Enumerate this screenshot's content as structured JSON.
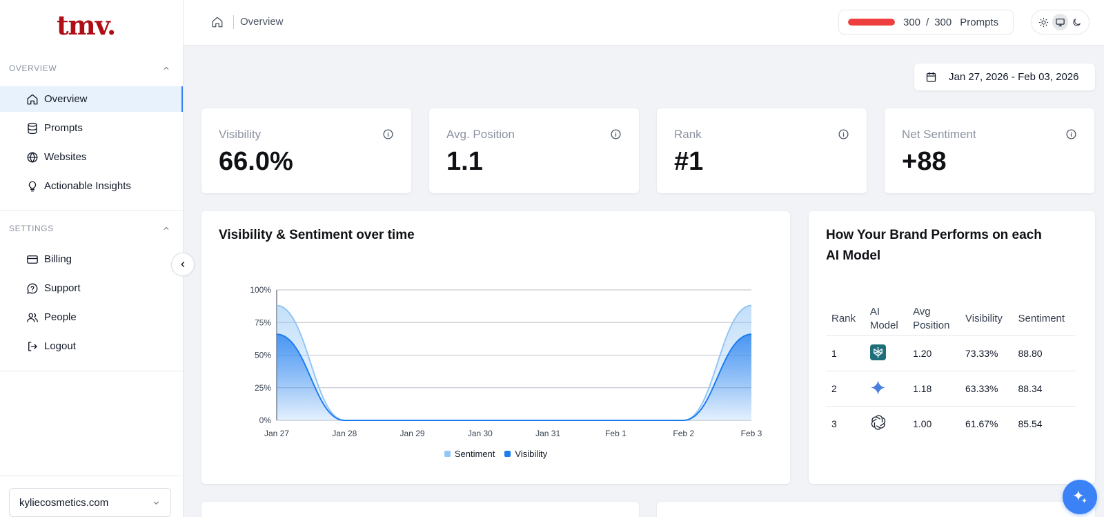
{
  "sidebar": {
    "logo": "tmv.",
    "overview_section": "OVERVIEW",
    "settings_section": "SETTINGS",
    "overview_items": [
      {
        "label": "Overview",
        "icon": "home-icon"
      },
      {
        "label": "Prompts",
        "icon": "database-icon"
      },
      {
        "label": "Websites",
        "icon": "globe-icon"
      },
      {
        "label": "Actionable Insights",
        "icon": "lightbulb-icon"
      }
    ],
    "settings_items": [
      {
        "label": "Billing",
        "icon": "credit-card-icon"
      },
      {
        "label": "Support",
        "icon": "help-circle-icon"
      },
      {
        "label": "People",
        "icon": "users-icon"
      },
      {
        "label": "Logout",
        "icon": "logout-icon"
      }
    ],
    "website_selector": "kyliecosmetics.com"
  },
  "header": {
    "breadcrumb": "Overview",
    "prompts_used": "300",
    "prompts_sep": "/",
    "prompts_total": "300",
    "prompts_label": "Prompts",
    "usage_fraction": 1.0,
    "usage_color": "#ef3e3e",
    "theme_selected": "system"
  },
  "date_range": "Jan 27, 2026 - Feb 03, 2026",
  "stats": [
    {
      "label": "Visibility",
      "value": "66.0%"
    },
    {
      "label": "Avg. Position",
      "value": "1.1"
    },
    {
      "label": "Rank",
      "value": "#1"
    },
    {
      "label": "Net Sentiment",
      "value": "+88"
    }
  ],
  "chart": {
    "title": "Visibility & Sentiment over time"
  },
  "chart_data": {
    "type": "area",
    "x": [
      "Jan 27",
      "Jan 28",
      "Jan 29",
      "Jan 30",
      "Jan 31",
      "Feb 1",
      "Feb 2",
      "Feb 3"
    ],
    "y_ticks": [
      "0%",
      "25%",
      "50%",
      "75%",
      "100%"
    ],
    "ylim": [
      0,
      100
    ],
    "grid": true,
    "legend_position": "bottom",
    "series": [
      {
        "name": "Sentiment",
        "color": "#93c5f5",
        "values": [
          88,
          0,
          0,
          0,
          0,
          0,
          0,
          88
        ]
      },
      {
        "name": "Visibility",
        "color": "#1d7cf0",
        "values": [
          66,
          0,
          0,
          0,
          0,
          0,
          0,
          66
        ]
      }
    ]
  },
  "models_card": {
    "title_line1": "How Your Brand Performs on each",
    "title_line2": "AI Model",
    "headers": {
      "rank": "Rank",
      "model_1": "AI",
      "model_2": "Model",
      "pos_1": "Avg",
      "pos_2": "Position",
      "visibility": "Visibility",
      "sentiment": "Sentiment"
    },
    "rows": [
      {
        "rank": "1",
        "icon": "perplexity-icon",
        "avg_position": "1.20",
        "visibility": "73.33%",
        "sentiment": "88.80"
      },
      {
        "rank": "2",
        "icon": "gemini-icon",
        "avg_position": "1.18",
        "visibility": "63.33%",
        "sentiment": "88.34"
      },
      {
        "rank": "3",
        "icon": "openai-icon",
        "avg_position": "1.00",
        "visibility": "61.67%",
        "sentiment": "85.54"
      }
    ]
  }
}
